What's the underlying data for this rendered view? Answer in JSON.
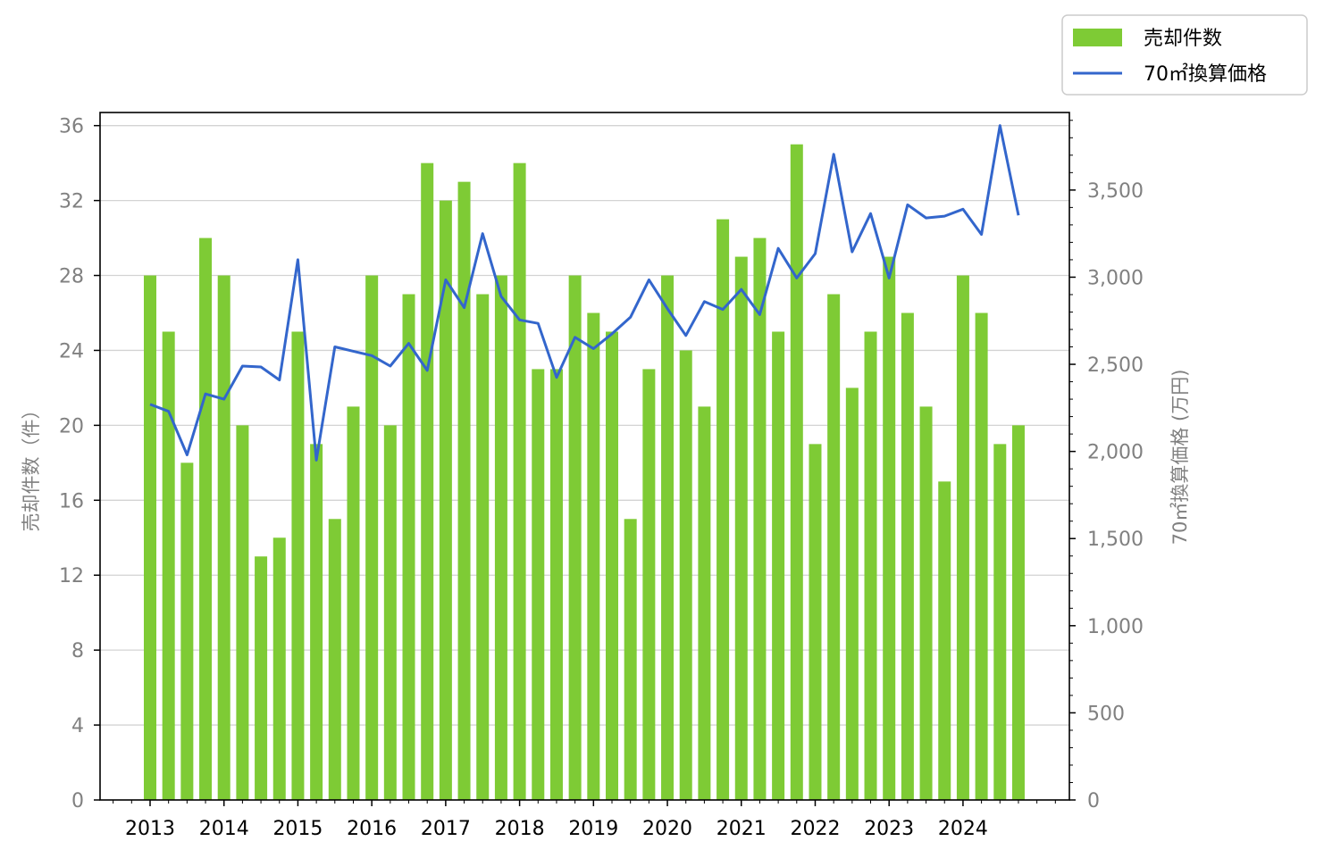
{
  "chart_data": {
    "type": "bar",
    "x_ticks": [
      "2013",
      "2014",
      "2015",
      "2016",
      "2017",
      "2018",
      "2019",
      "2020",
      "2021",
      "2022",
      "2023",
      "2024"
    ],
    "series": [
      {
        "name": "売却件数",
        "type": "bar",
        "axis": "left",
        "color": "#7ecb35",
        "values": [
          28,
          25,
          18,
          30,
          28,
          20,
          13,
          14,
          25,
          19,
          15,
          21,
          28,
          20,
          27,
          34,
          32,
          33,
          27,
          28,
          34,
          23,
          23,
          28,
          26,
          25,
          15,
          23,
          28,
          24,
          21,
          31,
          29,
          30,
          25,
          35,
          19,
          27,
          22,
          25,
          29,
          26,
          21,
          17,
          28,
          26,
          19,
          20
        ]
      },
      {
        "name": "70㎡換算価格",
        "type": "line",
        "axis": "right",
        "color": "#3366cc",
        "values": [
          2270,
          2230,
          1980,
          2330,
          2300,
          2490,
          2485,
          2410,
          3100,
          1950,
          2600,
          2575,
          2550,
          2490,
          2620,
          2465,
          2985,
          2825,
          3250,
          2890,
          2755,
          2735,
          2425,
          2655,
          2590,
          2675,
          2770,
          2985,
          2820,
          2665,
          2860,
          2815,
          2930,
          2785,
          3165,
          2995,
          3135,
          3705,
          3145,
          3365,
          2995,
          3415,
          3340,
          3350,
          3390,
          3245,
          3870,
          3355
        ]
      }
    ],
    "y_left": {
      "label": "売却件数（件）",
      "min": 0,
      "max": 36.7,
      "ticks": [
        0,
        4,
        8,
        12,
        16,
        20,
        24,
        28,
        32,
        36
      ],
      "tick_labels": [
        "0",
        "4",
        "8",
        "12",
        "16",
        "20",
        "24",
        "28",
        "32",
        "36"
      ]
    },
    "y_right": {
      "label": "70㎡換算価格 (万円)",
      "min": 0,
      "max": 3945,
      "ticks": [
        0,
        500,
        1000,
        1500,
        2000,
        2500,
        3000,
        3500
      ],
      "tick_labels": [
        "0",
        "500",
        "1,000",
        "1,500",
        "2,000",
        "2,500",
        "3,000",
        "3,500"
      ]
    },
    "grid": "horizontal",
    "legend_position": "top-right"
  },
  "legend": {
    "bar_label": "売却件数",
    "line_label": "70㎡換算価格"
  },
  "colors": {
    "bar": "#7ecb35",
    "line": "#3366cc",
    "grid": "#d3d3d3",
    "axis": "#000000",
    "tick_label": "#808080"
  }
}
